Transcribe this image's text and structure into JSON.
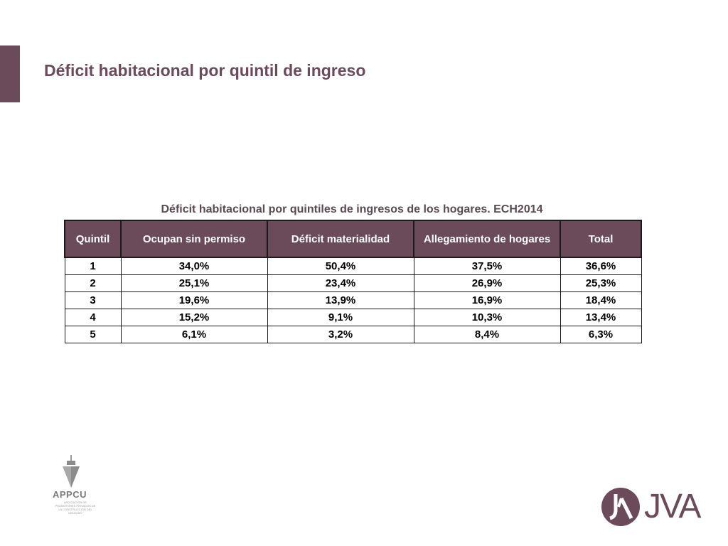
{
  "slide": {
    "title": "Déficit habitacional por quintil de ingreso"
  },
  "table": {
    "caption": "Déficit habitacional por quintiles de ingresos de los hogares. ECH2014",
    "headers": [
      "Quintil",
      "Ocupan sin permiso",
      "Déficit materialidad",
      "Allegamiento de hogares",
      "Total"
    ],
    "rows": [
      [
        "1",
        "34,0%",
        "50,4%",
        "37,5%",
        "36,6%"
      ],
      [
        "2",
        "25,1%",
        "23,4%",
        "26,9%",
        "25,3%"
      ],
      [
        "3",
        "19,6%",
        "13,9%",
        "16,9%",
        "18,4%"
      ],
      [
        "4",
        "15,2%",
        "9,1%",
        "10,3%",
        "13,4%"
      ],
      [
        "5",
        "6,1%",
        "3,2%",
        "8,4%",
        "6,3%"
      ]
    ]
  },
  "logos": {
    "appcu": {
      "name": "APPCU",
      "subtitle": "ASOCIACIÓN DE PROMOTORES PRIVADOS DE LA CONSTRUCCIÓN DEL URUGUAY"
    },
    "jva": {
      "name": "JVA"
    }
  },
  "colors": {
    "accent": "#6b4a5a",
    "header_text": "#ffffff"
  }
}
